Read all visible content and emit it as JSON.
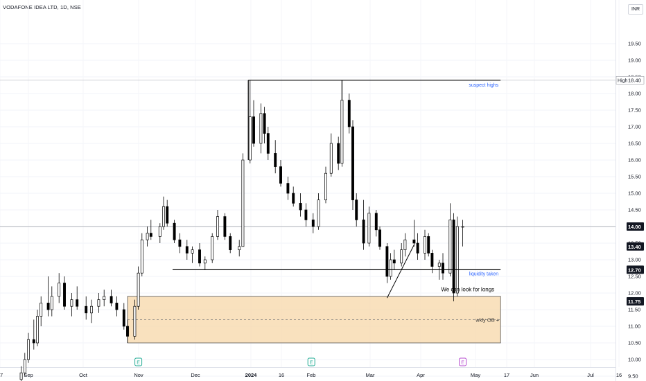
{
  "header": {
    "title": "VODAFONE IDEA LTD, 1D, NSE",
    "currency": "INR"
  },
  "chart_data": {
    "type": "candlestick",
    "symbol": "VODAFONE IDEA LTD",
    "interval": "1D",
    "exchange": "NSE",
    "ylim": [
      9.3,
      20.0
    ],
    "y_ticks": [
      "9.50",
      "10.00",
      "10.50",
      "11.00",
      "11.50",
      "12.00",
      "12.50",
      "13.00",
      "13.50",
      "14.00",
      "14.50",
      "15.00",
      "15.50",
      "16.00",
      "16.50",
      "17.00",
      "17.50",
      "18.00",
      "18.50",
      "19.00",
      "19.50"
    ],
    "x_ticks": [
      "7",
      "Sep",
      "Oct",
      "Nov",
      "Dec",
      "2024",
      "16",
      "Feb",
      "Mar",
      "Apr",
      "May",
      "17",
      "Jun",
      "Jul",
      "16"
    ],
    "price_badges": [
      {
        "value": 18.4,
        "label": "18.40",
        "prefix": "High",
        "style": "high"
      },
      {
        "value": 14.0,
        "label": "14.00",
        "style": "dark"
      },
      {
        "value": 13.4,
        "label": "13.40",
        "style": "dark"
      },
      {
        "value": 12.7,
        "label": "12.70",
        "style": "dark"
      },
      {
        "value": 11.75,
        "label": "11.75",
        "style": "dark"
      }
    ],
    "horizontal_lines": [
      {
        "name": "suspect-highs-line",
        "value": 18.4,
        "x_from": "2024-01-01",
        "x_to": "2024-05-20",
        "label": "suspect highs"
      },
      {
        "name": "liquidity-line",
        "value": 12.7,
        "x_from": "2023-11-20",
        "x_to": "2024-05-20",
        "label": "liquidity taken"
      },
      {
        "name": "current-price-line",
        "value": 14.0,
        "x_from": "full",
        "x_to": "full"
      }
    ],
    "zones": [
      {
        "name": "wkly-ob-zone",
        "label": "wkly OB",
        "y_top": 11.9,
        "y_bottom": 10.5,
        "y_mid": 11.2,
        "x_from": "2023-10-26",
        "x_to": "2024-05-20"
      }
    ],
    "annotations": [
      {
        "name": "look-for-longs-note",
        "text": "We can look for longs"
      }
    ],
    "earnings_markers": [
      {
        "date": "2023-11-01",
        "glyph": "E"
      },
      {
        "date": "2024-02-05",
        "glyph": "E"
      },
      {
        "date": "2024-04-29",
        "glyph": "E"
      }
    ],
    "candles": [
      {
        "d": "2023-08-28",
        "o": 9.4,
        "h": 9.8,
        "l": 9.3,
        "c": 9.6
      },
      {
        "d": "2023-08-30",
        "o": 9.6,
        "h": 10.2,
        "l": 9.5,
        "c": 10.0
      },
      {
        "d": "2023-09-01",
        "o": 10.0,
        "h": 10.8,
        "l": 9.9,
        "c": 10.6
      },
      {
        "d": "2023-09-04",
        "o": 10.6,
        "h": 11.2,
        "l": 10.3,
        "c": 10.5
      },
      {
        "d": "2023-09-06",
        "o": 10.5,
        "h": 11.5,
        "l": 10.4,
        "c": 11.3
      },
      {
        "d": "2023-09-08",
        "o": 11.3,
        "h": 11.9,
        "l": 11.0,
        "c": 11.7
      },
      {
        "d": "2023-09-12",
        "o": 11.7,
        "h": 12.5,
        "l": 11.3,
        "c": 11.5
      },
      {
        "d": "2023-09-14",
        "o": 11.5,
        "h": 12.2,
        "l": 11.3,
        "c": 11.9
      },
      {
        "d": "2023-09-18",
        "o": 11.9,
        "h": 12.6,
        "l": 11.7,
        "c": 12.3
      },
      {
        "d": "2023-09-21",
        "o": 12.3,
        "h": 12.5,
        "l": 11.5,
        "c": 11.6
      },
      {
        "d": "2023-09-25",
        "o": 11.6,
        "h": 12.0,
        "l": 11.3,
        "c": 11.8
      },
      {
        "d": "2023-09-28",
        "o": 11.8,
        "h": 12.2,
        "l": 11.5,
        "c": 11.6
      },
      {
        "d": "2023-10-03",
        "o": 11.6,
        "h": 11.9,
        "l": 11.2,
        "c": 11.4
      },
      {
        "d": "2023-10-06",
        "o": 11.4,
        "h": 11.8,
        "l": 11.1,
        "c": 11.6
      },
      {
        "d": "2023-10-10",
        "o": 11.6,
        "h": 12.0,
        "l": 11.4,
        "c": 11.8
      },
      {
        "d": "2023-10-13",
        "o": 11.8,
        "h": 12.1,
        "l": 11.6,
        "c": 11.9
      },
      {
        "d": "2023-10-17",
        "o": 11.9,
        "h": 12.1,
        "l": 11.6,
        "c": 11.7
      },
      {
        "d": "2023-10-20",
        "o": 11.7,
        "h": 11.9,
        "l": 11.3,
        "c": 11.5
      },
      {
        "d": "2023-10-24",
        "o": 11.5,
        "h": 11.7,
        "l": 10.9,
        "c": 11.0
      },
      {
        "d": "2023-10-26",
        "o": 11.0,
        "h": 11.2,
        "l": 10.5,
        "c": 10.7
      },
      {
        "d": "2023-10-30",
        "o": 10.7,
        "h": 11.8,
        "l": 10.6,
        "c": 11.6
      },
      {
        "d": "2023-11-01",
        "o": 11.6,
        "h": 12.8,
        "l": 11.5,
        "c": 12.6
      },
      {
        "d": "2023-11-03",
        "o": 12.6,
        "h": 13.8,
        "l": 12.5,
        "c": 13.6
      },
      {
        "d": "2023-11-06",
        "o": 13.6,
        "h": 14.0,
        "l": 13.4,
        "c": 13.8
      },
      {
        "d": "2023-11-08",
        "o": 13.8,
        "h": 14.2,
        "l": 13.6,
        "c": 13.7
      },
      {
        "d": "2023-11-13",
        "o": 13.7,
        "h": 14.1,
        "l": 13.5,
        "c": 14.0
      },
      {
        "d": "2023-11-15",
        "o": 14.0,
        "h": 14.9,
        "l": 13.9,
        "c": 14.6
      },
      {
        "d": "2023-11-17",
        "o": 14.6,
        "h": 14.8,
        "l": 14.0,
        "c": 14.1
      },
      {
        "d": "2023-11-21",
        "o": 14.1,
        "h": 14.2,
        "l": 13.5,
        "c": 13.6
      },
      {
        "d": "2023-11-24",
        "o": 13.6,
        "h": 13.8,
        "l": 13.2,
        "c": 13.4
      },
      {
        "d": "2023-11-28",
        "o": 13.4,
        "h": 13.6,
        "l": 13.0,
        "c": 13.2
      },
      {
        "d": "2023-12-01",
        "o": 13.2,
        "h": 13.4,
        "l": 12.9,
        "c": 13.3
      },
      {
        "d": "2023-12-05",
        "o": 13.3,
        "h": 13.5,
        "l": 12.8,
        "c": 12.9
      },
      {
        "d": "2023-12-08",
        "o": 12.9,
        "h": 13.1,
        "l": 12.7,
        "c": 13.0
      },
      {
        "d": "2023-12-12",
        "o": 13.0,
        "h": 13.8,
        "l": 12.9,
        "c": 13.7
      },
      {
        "d": "2023-12-15",
        "o": 13.7,
        "h": 14.5,
        "l": 13.6,
        "c": 14.3
      },
      {
        "d": "2023-12-19",
        "o": 14.3,
        "h": 14.4,
        "l": 13.6,
        "c": 13.7
      },
      {
        "d": "2023-12-22",
        "o": 13.7,
        "h": 13.8,
        "l": 13.2,
        "c": 13.3
      },
      {
        "d": "2023-12-27",
        "o": 13.3,
        "h": 13.6,
        "l": 13.1,
        "c": 13.4
      },
      {
        "d": "2023-12-29",
        "o": 13.4,
        "h": 16.2,
        "l": 13.4,
        "c": 16.0
      },
      {
        "d": "2024-01-02",
        "o": 16.0,
        "h": 18.4,
        "l": 15.9,
        "c": 17.3
      },
      {
        "d": "2024-01-04",
        "o": 17.3,
        "h": 17.8,
        "l": 16.4,
        "c": 16.5
      },
      {
        "d": "2024-01-08",
        "o": 16.5,
        "h": 17.7,
        "l": 16.2,
        "c": 17.4
      },
      {
        "d": "2024-01-10",
        "o": 17.4,
        "h": 17.6,
        "l": 16.5,
        "c": 16.8
      },
      {
        "d": "2024-01-12",
        "o": 16.8,
        "h": 17.0,
        "l": 16.0,
        "c": 16.2
      },
      {
        "d": "2024-01-16",
        "o": 16.2,
        "h": 16.6,
        "l": 15.6,
        "c": 15.8
      },
      {
        "d": "2024-01-19",
        "o": 15.8,
        "h": 16.0,
        "l": 15.2,
        "c": 15.3
      },
      {
        "d": "2024-01-23",
        "o": 15.3,
        "h": 15.5,
        "l": 14.8,
        "c": 15.0
      },
      {
        "d": "2024-01-26",
        "o": 15.0,
        "h": 15.2,
        "l": 14.6,
        "c": 14.7
      },
      {
        "d": "2024-01-30",
        "o": 14.7,
        "h": 15.0,
        "l": 14.3,
        "c": 14.5
      },
      {
        "d": "2024-02-02",
        "o": 14.5,
        "h": 14.7,
        "l": 14.0,
        "c": 14.2
      },
      {
        "d": "2024-02-06",
        "o": 14.2,
        "h": 14.4,
        "l": 13.8,
        "c": 14.0
      },
      {
        "d": "2024-02-09",
        "o": 14.0,
        "h": 15.0,
        "l": 13.9,
        "c": 14.8
      },
      {
        "d": "2024-02-13",
        "o": 14.8,
        "h": 15.8,
        "l": 14.7,
        "c": 15.6
      },
      {
        "d": "2024-02-16",
        "o": 15.6,
        "h": 16.8,
        "l": 15.5,
        "c": 16.5
      },
      {
        "d": "2024-02-20",
        "o": 16.5,
        "h": 16.7,
        "l": 15.7,
        "c": 15.9
      },
      {
        "d": "2024-02-22",
        "o": 15.9,
        "h": 18.4,
        "l": 15.8,
        "c": 17.8
      },
      {
        "d": "2024-02-26",
        "o": 17.8,
        "h": 18.0,
        "l": 16.8,
        "c": 17.0
      },
      {
        "d": "2024-02-28",
        "o": 17.0,
        "h": 17.2,
        "l": 14.5,
        "c": 14.8
      },
      {
        "d": "2024-03-01",
        "o": 14.8,
        "h": 15.0,
        "l": 14.0,
        "c": 14.2
      },
      {
        "d": "2024-03-05",
        "o": 14.2,
        "h": 14.8,
        "l": 13.3,
        "c": 13.5
      },
      {
        "d": "2024-03-08",
        "o": 13.5,
        "h": 14.6,
        "l": 13.4,
        "c": 14.4
      },
      {
        "d": "2024-03-12",
        "o": 14.4,
        "h": 14.5,
        "l": 13.7,
        "c": 13.9
      },
      {
        "d": "2024-03-14",
        "o": 13.9,
        "h": 14.0,
        "l": 13.3,
        "c": 13.4
      },
      {
        "d": "2024-03-18",
        "o": 13.4,
        "h": 13.5,
        "l": 12.3,
        "c": 12.5
      },
      {
        "d": "2024-03-20",
        "o": 12.5,
        "h": 13.2,
        "l": 12.4,
        "c": 13.0
      },
      {
        "d": "2024-03-22",
        "o": 13.0,
        "h": 13.3,
        "l": 12.7,
        "c": 12.9
      },
      {
        "d": "2024-03-26",
        "o": 12.9,
        "h": 13.5,
        "l": 12.8,
        "c": 13.3
      },
      {
        "d": "2024-03-28",
        "o": 13.3,
        "h": 13.8,
        "l": 13.1,
        "c": 13.6
      },
      {
        "d": "2024-04-02",
        "o": 13.6,
        "h": 14.2,
        "l": 13.4,
        "c": 13.5
      },
      {
        "d": "2024-04-04",
        "o": 13.5,
        "h": 13.8,
        "l": 13.0,
        "c": 13.2
      },
      {
        "d": "2024-04-08",
        "o": 13.2,
        "h": 13.9,
        "l": 13.0,
        "c": 13.7
      },
      {
        "d": "2024-04-10",
        "o": 13.7,
        "h": 13.8,
        "l": 13.1,
        "c": 13.2
      },
      {
        "d": "2024-04-12",
        "o": 13.2,
        "h": 13.3,
        "l": 12.6,
        "c": 12.8
      },
      {
        "d": "2024-04-16",
        "o": 12.8,
        "h": 13.0,
        "l": 12.4,
        "c": 12.9
      },
      {
        "d": "2024-04-18",
        "o": 12.9,
        "h": 13.2,
        "l": 12.4,
        "c": 12.6
      },
      {
        "d": "2024-04-22",
        "o": 12.6,
        "h": 14.7,
        "l": 12.5,
        "c": 14.2
      },
      {
        "d": "2024-04-24",
        "o": 14.2,
        "h": 14.4,
        "l": 11.75,
        "c": 12.0
      },
      {
        "d": "2024-04-26",
        "o": 12.0,
        "h": 14.3,
        "l": 11.9,
        "c": 14.0
      },
      {
        "d": "2024-04-29",
        "o": 14.0,
        "h": 14.2,
        "l": 13.4,
        "c": 14.0
      }
    ]
  }
}
